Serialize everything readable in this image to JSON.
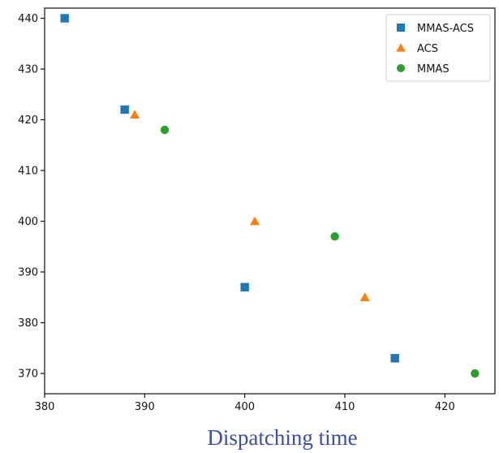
{
  "chart_data": {
    "type": "scatter",
    "xlabel": "Dispatching time",
    "ylabel": "",
    "title": "",
    "xlim": [
      380,
      425
    ],
    "ylim": [
      366,
      442
    ],
    "xticks": [
      380,
      390,
      400,
      410,
      420
    ],
    "yticks": [
      370,
      380,
      390,
      400,
      410,
      420,
      430,
      440
    ],
    "grid": false,
    "legend_position": "top-right",
    "series": [
      {
        "name": "MMAS-ACS",
        "marker": "square",
        "color": "#1f77b4",
        "points": [
          [
            382,
            440
          ],
          [
            388,
            422
          ],
          [
            400,
            387
          ],
          [
            415,
            373
          ]
        ]
      },
      {
        "name": "ACS",
        "marker": "triangle",
        "color": "#ff7f0e",
        "points": [
          [
            389,
            421
          ],
          [
            401,
            400
          ],
          [
            412,
            385
          ]
        ]
      },
      {
        "name": "MMAS",
        "marker": "circle",
        "color": "#2ca02c",
        "points": [
          [
            392,
            418
          ],
          [
            409,
            397
          ],
          [
            423,
            370
          ]
        ]
      }
    ]
  }
}
